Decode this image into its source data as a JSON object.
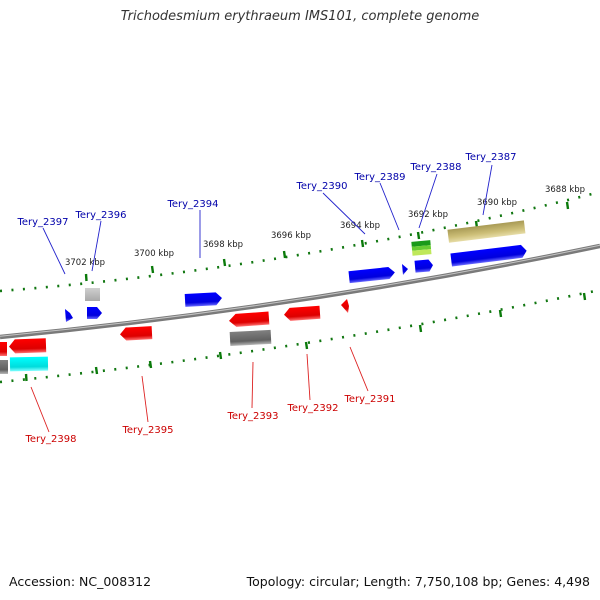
{
  "title": "Trichodesmium erythraeum IMS101, complete genome",
  "footer": {
    "accession": "Accession: NC_008312",
    "summary": "Topology: circular; Length: 7,750,108 bp; Genes: 4,498"
  },
  "colors": {
    "forward_gene": "#0000ee",
    "reverse_gene": "#ee0000",
    "grey_feature": "#707070",
    "light_grey_feature": "#c0c0c0",
    "cyan_feature": "#00e5e5",
    "khaki_feature": "#c2b66c",
    "green_feature": "#22aa22",
    "light_green_feature": "#99dd33",
    "tick": "#007700",
    "backbone": "#888888",
    "forward_label": "#0000aa",
    "reverse_label": "#cc0000"
  },
  "kbp_labels": [
    "3688 kbp",
    "3690 kbp",
    "3692 kbp",
    "3694 kbp",
    "3696 kbp",
    "3698 kbp",
    "3700 kbp",
    "3702 kbp"
  ],
  "forward_labels": [
    "Tery_2387",
    "Tery_2388",
    "Tery_2389",
    "Tery_2390",
    "Tery_2394",
    "Tery_2396",
    "Tery_2397"
  ],
  "reverse_labels": [
    "Tery_2391",
    "Tery_2392",
    "Tery_2393",
    "Tery_2395",
    "Tery_2398"
  ]
}
